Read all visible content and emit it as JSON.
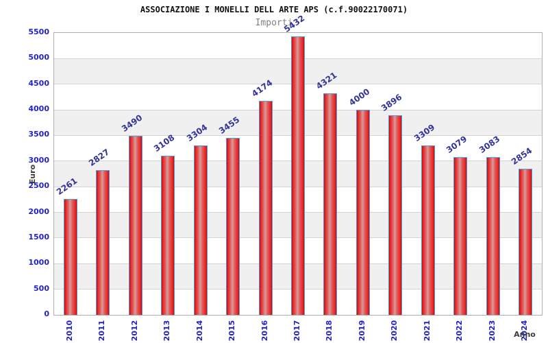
{
  "chart_data": {
    "type": "bar",
    "title": "ASSOCIAZIONE I MONELLI DELL ARTE APS (c.f.90022170071)",
    "subtitle": "Importi",
    "xlabel": "Anno",
    "ylabel": "Euro",
    "categories": [
      "2010",
      "2011",
      "2012",
      "2013",
      "2014",
      "2015",
      "2016",
      "2017",
      "2018",
      "2019",
      "2020",
      "2021",
      "2022",
      "2023",
      "2024"
    ],
    "values": [
      2261,
      2827,
      3490,
      3108,
      3304,
      3455,
      4174,
      5432,
      4321,
      4000,
      3896,
      3309,
      3079,
      3083,
      2854
    ],
    "ylim": [
      0,
      5500
    ],
    "ytick_step": 500,
    "grid": "horizontal-bands",
    "legend_position": "none",
    "colors": {
      "bar_edge_red": "#b50f0f",
      "bar_main_red": "#ec2222",
      "bar_center_highlight": "#d89c9c",
      "bar_border_blue": "#4e9fdd",
      "tick_label_blue": "#2222cc",
      "value_label_navy": "#333399",
      "band_gray": "#f0f0f0",
      "band_white": "#ffffff",
      "gridline_gray": "#d4d4d4",
      "plot_border_gray": "#aeaeae",
      "title_black": "#111111",
      "subtitle_gray": "#808080",
      "axis_title_gray": "#3a3a3a"
    }
  }
}
